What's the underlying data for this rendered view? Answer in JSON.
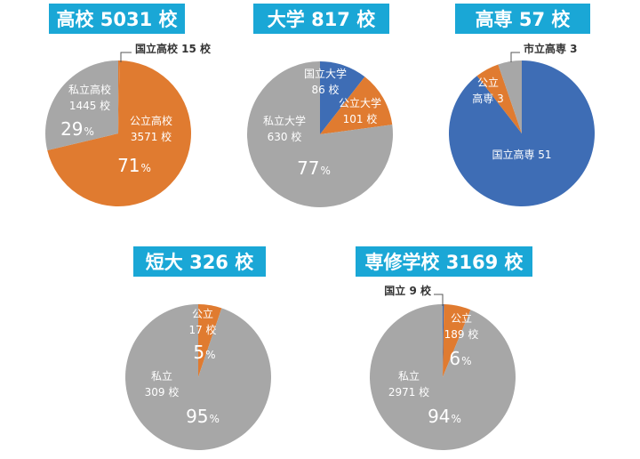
{
  "colors": {
    "title_bg": "#1aa7d6",
    "orange": "#e07b30",
    "gray": "#a7a7a7",
    "blue": "#3e6db5",
    "leader": "#555555"
  },
  "chart_data": [
    {
      "type": "pie",
      "title": "高校 5031 校",
      "slices": [
        {
          "label": "国立高校",
          "value": 15,
          "color": "#e07b30",
          "lines": [
            "国立高校 15 校"
          ]
        },
        {
          "label": "公立高校",
          "value": 3571,
          "color": "#e07b30",
          "lines": [
            "公立高校",
            "3571 校"
          ],
          "pct_num": "71",
          "pct_unit": "%"
        },
        {
          "label": "私立高校",
          "value": 1445,
          "color": "#a7a7a7",
          "lines": [
            "私立高校",
            "1445 校"
          ],
          "pct_num": "29",
          "pct_unit": "%"
        }
      ]
    },
    {
      "type": "pie",
      "title": "大学 817 校",
      "slices": [
        {
          "label": "国立大学",
          "value": 86,
          "color": "#3e6db5",
          "lines": [
            "国立大学",
            "86 校"
          ]
        },
        {
          "label": "公立大学",
          "value": 101,
          "color": "#e07b30",
          "lines": [
            "公立大学",
            "101 校"
          ]
        },
        {
          "label": "私立大学",
          "value": 630,
          "color": "#a7a7a7",
          "lines": [
            "私立大学",
            "630 校"
          ],
          "pct_num": "77",
          "pct_unit": "%"
        }
      ]
    },
    {
      "type": "pie",
      "title": "高専 57 校",
      "slices": [
        {
          "label": "国立高専",
          "value": 51,
          "color": "#3e6db5",
          "lines": [
            "国立高専 51"
          ]
        },
        {
          "label": "公立高専",
          "value": 3,
          "color": "#e07b30",
          "lines": [
            "公立",
            "高専 3"
          ]
        },
        {
          "label": "市立高専",
          "value": 3,
          "color": "#a7a7a7",
          "lines": [
            "市立高専 3"
          ]
        }
      ]
    },
    {
      "type": "pie",
      "title": "短大 326 校",
      "slices": [
        {
          "label": "公立",
          "value": 17,
          "color": "#e07b30",
          "lines": [
            "公立",
            "17 校"
          ],
          "pct_num": "5",
          "pct_unit": "%"
        },
        {
          "label": "私立",
          "value": 309,
          "color": "#a7a7a7",
          "lines": [
            "私立",
            "309 校"
          ],
          "pct_num": "95",
          "pct_unit": "%"
        }
      ]
    },
    {
      "type": "pie",
      "title": "専修学校 3169 校",
      "slices": [
        {
          "label": "国立",
          "value": 9,
          "color": "#3e6db5",
          "lines": [
            "国立 9 校"
          ]
        },
        {
          "label": "公立",
          "value": 189,
          "color": "#e07b30",
          "lines": [
            "公立",
            "189 校"
          ],
          "pct_num": "6",
          "pct_unit": "%"
        },
        {
          "label": "私立",
          "value": 2971,
          "color": "#a7a7a7",
          "lines": [
            "私立",
            "2971 校"
          ],
          "pct_num": "94",
          "pct_unit": "%"
        }
      ]
    }
  ]
}
